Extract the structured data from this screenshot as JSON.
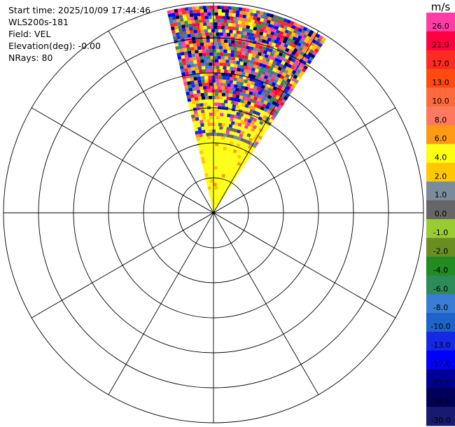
{
  "info": {
    "start_time": "Start time: 2025/10/09 17:44:46",
    "instrument": "WLS200s-181",
    "field": "Field: VEL",
    "elevation": "Elevation(deg): -0.00",
    "nrays": "NRays: 80"
  },
  "chart_data": {
    "type": "heatmap",
    "projection": "polar-ppi",
    "grid": true,
    "range_rings": 6,
    "spokes_every_deg": 30,
    "sector_azimuth_deg": [
      -13,
      33
    ],
    "colorbar": {
      "unit": "m/s",
      "location": "right",
      "ticks": [
        {
          "value": 26.0,
          "label": "26.0",
          "color": "#ff3ca8"
        },
        {
          "value": 21.0,
          "label": "21.0",
          "color": "#ff0040"
        },
        {
          "value": 17.0,
          "label": "17.0",
          "color": "#ff2a22"
        },
        {
          "value": 13.0,
          "label": "13.0",
          "color": "#ff4a10"
        },
        {
          "value": 10.0,
          "label": "10.0",
          "color": "#ff6a3c"
        },
        {
          "value": 8.0,
          "label": "8.0",
          "color": "#ff7860"
        },
        {
          "value": 6.0,
          "label": "6.0",
          "color": "#ff9a14"
        },
        {
          "value": 4.0,
          "label": "4.0",
          "color": "#ffff14"
        },
        {
          "value": 2.0,
          "label": "2.0",
          "color": "#ffc800"
        },
        {
          "value": 1.0,
          "label": "1.0",
          "color": "#7b8b99"
        },
        {
          "value": 0.0,
          "label": "0.0",
          "color": "#666666"
        },
        {
          "value": -1.0,
          "label": "-1.0",
          "color": "#99cc33"
        },
        {
          "value": -2.0,
          "label": "-2.0",
          "color": "#6b8e23"
        },
        {
          "value": -4.0,
          "label": "-4.0",
          "color": "#228b22"
        },
        {
          "value": -6.0,
          "label": "-6.0",
          "color": "#2e8b57"
        },
        {
          "value": -8.0,
          "label": "-8.0",
          "color": "#3a7bd5"
        },
        {
          "value": -10.0,
          "label": "-10.0",
          "color": "#1e64c8"
        },
        {
          "value": -13.0,
          "label": "-13.0",
          "color": "#1428e6"
        },
        {
          "value": -17.0,
          "label": "-17.0",
          "color": "#0000ff"
        },
        {
          "value": -21.0,
          "label": "-21.0",
          "color": "#000096"
        },
        {
          "value": -26.0,
          "label": "-26.0",
          "color": "#00005a"
        },
        {
          "value": -30.0,
          "label": "-30.0",
          "color": "#191970"
        }
      ]
    }
  }
}
